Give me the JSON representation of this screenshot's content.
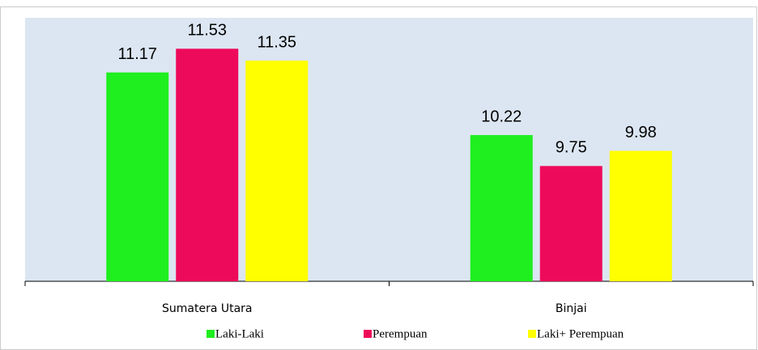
{
  "chart_data": {
    "type": "bar",
    "categories": [
      "Sumatera Utara",
      "Binjai"
    ],
    "series": [
      {
        "name": "Laki-Laki",
        "color": "#1fee1f",
        "values": [
          11.17,
          10.22
        ]
      },
      {
        "name": "Perempuan",
        "color": "#ee0a5a",
        "values": [
          11.53,
          9.75
        ]
      },
      {
        "name": "Laki+ Perempuan",
        "color": "#ffff00",
        "values": [
          11.35,
          9.98
        ]
      }
    ],
    "ylim": [
      8,
      12
    ]
  }
}
